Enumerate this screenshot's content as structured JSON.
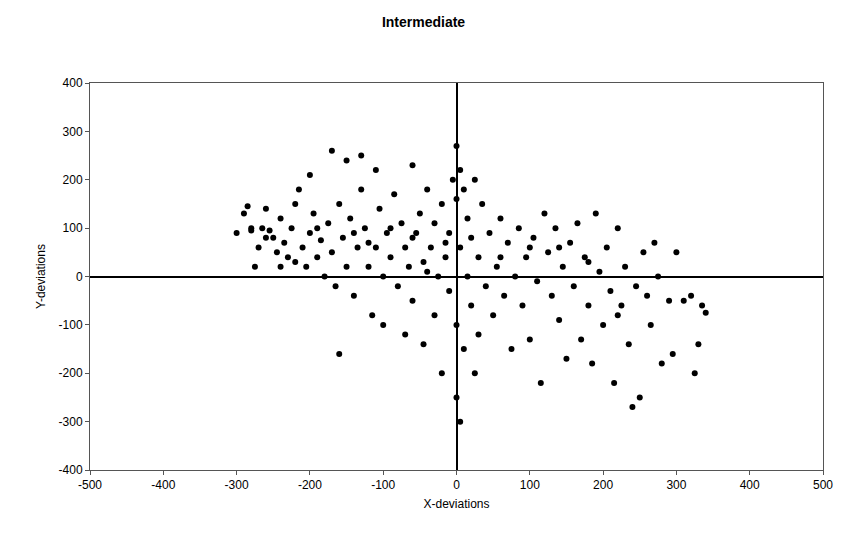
{
  "chart_data": {
    "type": "scatter",
    "title": "Intermediate",
    "x_label": "X-deviations",
    "y_label": "Y-deviations",
    "color": "#000000",
    "marker": "circle",
    "grid": false,
    "xlim": [
      -500,
      500
    ],
    "xticks": [
      -500,
      -400,
      -300,
      -200,
      -100,
      0,
      100,
      200,
      300,
      400,
      500
    ],
    "ylim": [
      -400,
      400
    ],
    "yticks": [
      -400,
      -300,
      -200,
      -100,
      0,
      100,
      200,
      300,
      400
    ],
    "x": [
      -300,
      -290,
      -285,
      -280,
      -275,
      -270,
      -265,
      -260,
      -255,
      -250,
      -245,
      -240,
      -240,
      -235,
      -230,
      -225,
      -220,
      -215,
      -210,
      -205,
      -200,
      -200,
      -195,
      -190,
      -185,
      -180,
      -175,
      -170,
      -170,
      -165,
      -160,
      -160,
      -155,
      -150,
      -150,
      -145,
      -140,
      -135,
      -130,
      -130,
      -125,
      -120,
      -115,
      -110,
      -110,
      -105,
      -100,
      -100,
      -95,
      -90,
      -85,
      -80,
      -75,
      -70,
      -70,
      -65,
      -60,
      -60,
      -55,
      -50,
      -45,
      -45,
      -40,
      -35,
      -30,
      -30,
      -25,
      -20,
      -20,
      -15,
      -10,
      -10,
      -5,
      0,
      0,
      0,
      0,
      5,
      5,
      5,
      10,
      10,
      15,
      15,
      20,
      20,
      25,
      25,
      30,
      30,
      35,
      40,
      45,
      50,
      55,
      60,
      65,
      70,
      75,
      80,
      85,
      90,
      95,
      100,
      105,
      110,
      115,
      120,
      125,
      130,
      135,
      140,
      145,
      150,
      155,
      160,
      165,
      170,
      175,
      180,
      185,
      190,
      195,
      200,
      205,
      210,
      215,
      220,
      225,
      230,
      235,
      240,
      245,
      250,
      255,
      260,
      265,
      270,
      275,
      280,
      290,
      295,
      300,
      310,
      320,
      325,
      330,
      335,
      340,
      -280,
      -260,
      -220,
      -190,
      -140,
      -120,
      -90,
      -60,
      -40,
      -15,
      100,
      140,
      180,
      220,
      60
    ],
    "values": [
      90,
      130,
      145,
      95,
      20,
      60,
      100,
      140,
      95,
      80,
      50,
      20,
      120,
      70,
      40,
      100,
      150,
      180,
      60,
      20,
      210,
      90,
      130,
      40,
      75,
      0,
      110,
      260,
      50,
      -20,
      150,
      -160,
      80,
      240,
      20,
      120,
      -40,
      60,
      250,
      180,
      100,
      20,
      -80,
      220,
      60,
      140,
      0,
      -100,
      90,
      40,
      170,
      -20,
      110,
      -120,
      60,
      20,
      230,
      -50,
      90,
      130,
      -140,
      30,
      180,
      60,
      -80,
      110,
      0,
      150,
      -200,
      40,
      90,
      -30,
      200,
      270,
      160,
      -100,
      -250,
      220,
      60,
      -300,
      180,
      -150,
      120,
      0,
      80,
      -60,
      200,
      -200,
      40,
      -120,
      150,
      -20,
      90,
      -80,
      20,
      120,
      -40,
      70,
      -150,
      0,
      100,
      -60,
      40,
      -130,
      80,
      -10,
      -220,
      130,
      50,
      -40,
      100,
      -90,
      20,
      -170,
      70,
      -20,
      110,
      -130,
      40,
      -60,
      -180,
      130,
      10,
      -100,
      60,
      -30,
      -220,
      100,
      -60,
      20,
      -140,
      -270,
      -20,
      -250,
      50,
      -40,
      -100,
      70,
      0,
      -180,
      -50,
      -160,
      50,
      -50,
      -40,
      -200,
      -140,
      -60,
      -75,
      100,
      80,
      30,
      100,
      90,
      70,
      100,
      80,
      10,
      70,
      60,
      60,
      30,
      -80,
      40
    ]
  }
}
